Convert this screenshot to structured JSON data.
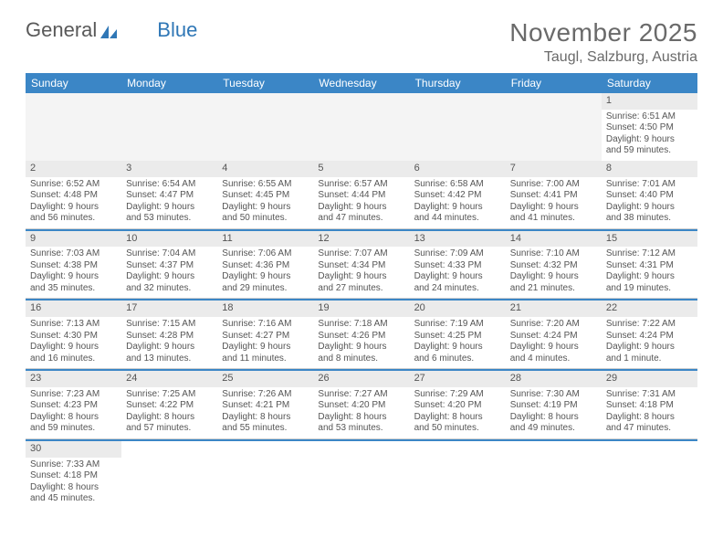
{
  "brand": {
    "part1": "General",
    "part2": "Blue"
  },
  "title": {
    "month": "November 2025",
    "location": "Taugl, Salzburg, Austria"
  },
  "colors": {
    "header_bg": "#3b86c6",
    "accent": "#2f77b6",
    "text": "#555555",
    "num_bg": "#ebebeb"
  },
  "dow": [
    "Sunday",
    "Monday",
    "Tuesday",
    "Wednesday",
    "Thursday",
    "Friday",
    "Saturday"
  ],
  "weeks": [
    [
      null,
      null,
      null,
      null,
      null,
      null,
      {
        "n": "1",
        "sr": "Sunrise: 6:51 AM",
        "ss": "Sunset: 4:50 PM",
        "dl1": "Daylight: 9 hours",
        "dl2": "and 59 minutes."
      }
    ],
    [
      {
        "n": "2",
        "sr": "Sunrise: 6:52 AM",
        "ss": "Sunset: 4:48 PM",
        "dl1": "Daylight: 9 hours",
        "dl2": "and 56 minutes."
      },
      {
        "n": "3",
        "sr": "Sunrise: 6:54 AM",
        "ss": "Sunset: 4:47 PM",
        "dl1": "Daylight: 9 hours",
        "dl2": "and 53 minutes."
      },
      {
        "n": "4",
        "sr": "Sunrise: 6:55 AM",
        "ss": "Sunset: 4:45 PM",
        "dl1": "Daylight: 9 hours",
        "dl2": "and 50 minutes."
      },
      {
        "n": "5",
        "sr": "Sunrise: 6:57 AM",
        "ss": "Sunset: 4:44 PM",
        "dl1": "Daylight: 9 hours",
        "dl2": "and 47 minutes."
      },
      {
        "n": "6",
        "sr": "Sunrise: 6:58 AM",
        "ss": "Sunset: 4:42 PM",
        "dl1": "Daylight: 9 hours",
        "dl2": "and 44 minutes."
      },
      {
        "n": "7",
        "sr": "Sunrise: 7:00 AM",
        "ss": "Sunset: 4:41 PM",
        "dl1": "Daylight: 9 hours",
        "dl2": "and 41 minutes."
      },
      {
        "n": "8",
        "sr": "Sunrise: 7:01 AM",
        "ss": "Sunset: 4:40 PM",
        "dl1": "Daylight: 9 hours",
        "dl2": "and 38 minutes."
      }
    ],
    [
      {
        "n": "9",
        "sr": "Sunrise: 7:03 AM",
        "ss": "Sunset: 4:38 PM",
        "dl1": "Daylight: 9 hours",
        "dl2": "and 35 minutes."
      },
      {
        "n": "10",
        "sr": "Sunrise: 7:04 AM",
        "ss": "Sunset: 4:37 PM",
        "dl1": "Daylight: 9 hours",
        "dl2": "and 32 minutes."
      },
      {
        "n": "11",
        "sr": "Sunrise: 7:06 AM",
        "ss": "Sunset: 4:36 PM",
        "dl1": "Daylight: 9 hours",
        "dl2": "and 29 minutes."
      },
      {
        "n": "12",
        "sr": "Sunrise: 7:07 AM",
        "ss": "Sunset: 4:34 PM",
        "dl1": "Daylight: 9 hours",
        "dl2": "and 27 minutes."
      },
      {
        "n": "13",
        "sr": "Sunrise: 7:09 AM",
        "ss": "Sunset: 4:33 PM",
        "dl1": "Daylight: 9 hours",
        "dl2": "and 24 minutes."
      },
      {
        "n": "14",
        "sr": "Sunrise: 7:10 AM",
        "ss": "Sunset: 4:32 PM",
        "dl1": "Daylight: 9 hours",
        "dl2": "and 21 minutes."
      },
      {
        "n": "15",
        "sr": "Sunrise: 7:12 AM",
        "ss": "Sunset: 4:31 PM",
        "dl1": "Daylight: 9 hours",
        "dl2": "and 19 minutes."
      }
    ],
    [
      {
        "n": "16",
        "sr": "Sunrise: 7:13 AM",
        "ss": "Sunset: 4:30 PM",
        "dl1": "Daylight: 9 hours",
        "dl2": "and 16 minutes."
      },
      {
        "n": "17",
        "sr": "Sunrise: 7:15 AM",
        "ss": "Sunset: 4:28 PM",
        "dl1": "Daylight: 9 hours",
        "dl2": "and 13 minutes."
      },
      {
        "n": "18",
        "sr": "Sunrise: 7:16 AM",
        "ss": "Sunset: 4:27 PM",
        "dl1": "Daylight: 9 hours",
        "dl2": "and 11 minutes."
      },
      {
        "n": "19",
        "sr": "Sunrise: 7:18 AM",
        "ss": "Sunset: 4:26 PM",
        "dl1": "Daylight: 9 hours",
        "dl2": "and 8 minutes."
      },
      {
        "n": "20",
        "sr": "Sunrise: 7:19 AM",
        "ss": "Sunset: 4:25 PM",
        "dl1": "Daylight: 9 hours",
        "dl2": "and 6 minutes."
      },
      {
        "n": "21",
        "sr": "Sunrise: 7:20 AM",
        "ss": "Sunset: 4:24 PM",
        "dl1": "Daylight: 9 hours",
        "dl2": "and 4 minutes."
      },
      {
        "n": "22",
        "sr": "Sunrise: 7:22 AM",
        "ss": "Sunset: 4:24 PM",
        "dl1": "Daylight: 9 hours",
        "dl2": "and 1 minute."
      }
    ],
    [
      {
        "n": "23",
        "sr": "Sunrise: 7:23 AM",
        "ss": "Sunset: 4:23 PM",
        "dl1": "Daylight: 8 hours",
        "dl2": "and 59 minutes."
      },
      {
        "n": "24",
        "sr": "Sunrise: 7:25 AM",
        "ss": "Sunset: 4:22 PM",
        "dl1": "Daylight: 8 hours",
        "dl2": "and 57 minutes."
      },
      {
        "n": "25",
        "sr": "Sunrise: 7:26 AM",
        "ss": "Sunset: 4:21 PM",
        "dl1": "Daylight: 8 hours",
        "dl2": "and 55 minutes."
      },
      {
        "n": "26",
        "sr": "Sunrise: 7:27 AM",
        "ss": "Sunset: 4:20 PM",
        "dl1": "Daylight: 8 hours",
        "dl2": "and 53 minutes."
      },
      {
        "n": "27",
        "sr": "Sunrise: 7:29 AM",
        "ss": "Sunset: 4:20 PM",
        "dl1": "Daylight: 8 hours",
        "dl2": "and 50 minutes."
      },
      {
        "n": "28",
        "sr": "Sunrise: 7:30 AM",
        "ss": "Sunset: 4:19 PM",
        "dl1": "Daylight: 8 hours",
        "dl2": "and 49 minutes."
      },
      {
        "n": "29",
        "sr": "Sunrise: 7:31 AM",
        "ss": "Sunset: 4:18 PM",
        "dl1": "Daylight: 8 hours",
        "dl2": "and 47 minutes."
      }
    ],
    [
      {
        "n": "30",
        "sr": "Sunrise: 7:33 AM",
        "ss": "Sunset: 4:18 PM",
        "dl1": "Daylight: 8 hours",
        "dl2": "and 45 minutes."
      },
      null,
      null,
      null,
      null,
      null,
      null
    ]
  ]
}
